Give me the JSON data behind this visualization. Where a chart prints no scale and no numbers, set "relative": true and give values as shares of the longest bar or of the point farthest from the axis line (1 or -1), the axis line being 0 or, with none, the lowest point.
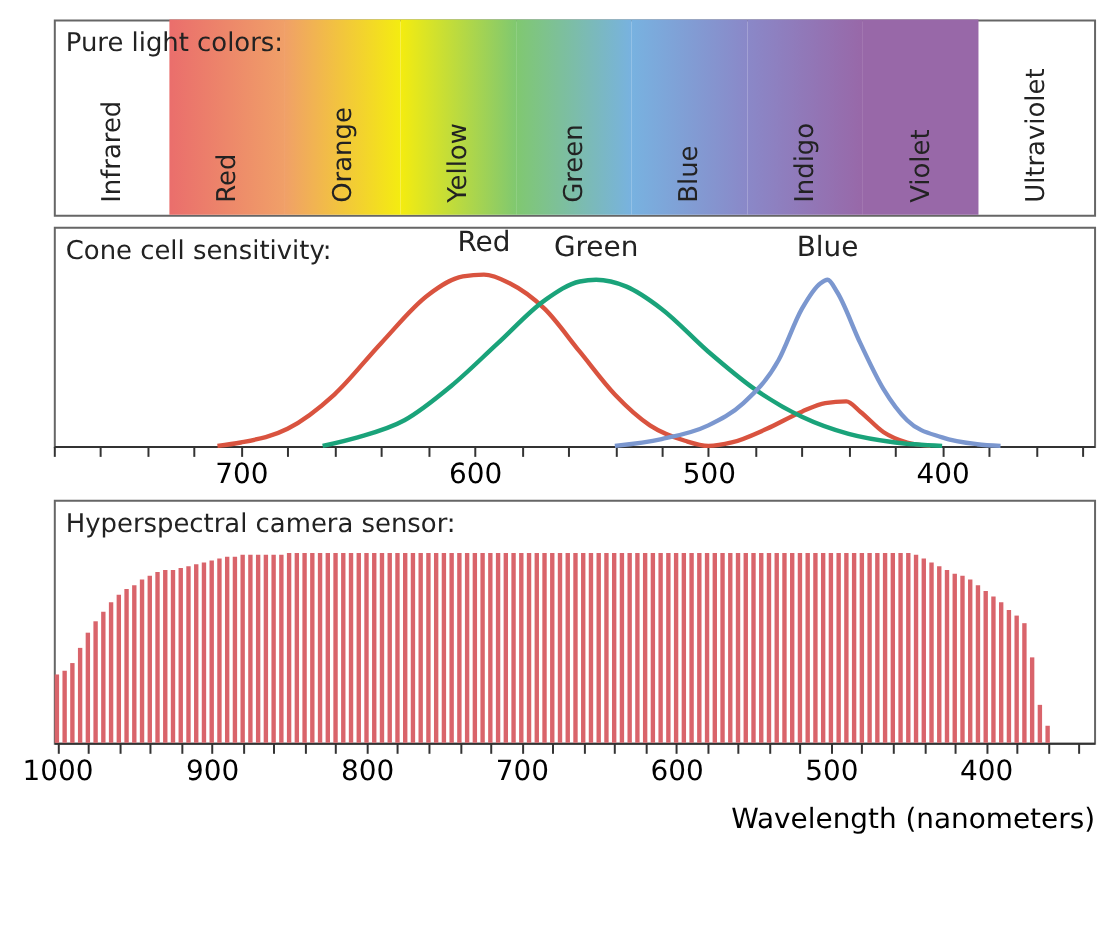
{
  "chart_data": [
    {
      "type": "other",
      "title": "Pure light colors:",
      "categories": [
        "Infrared",
        "Red",
        "Orange",
        "Yellow",
        "Green",
        "Blue",
        "Indigo",
        "Violet",
        "Ultraviolet"
      ],
      "colors": [
        null,
        "#ea6e6c",
        "#f0a068",
        "#f4ec10",
        "#80c870",
        "#78b2e0",
        "#8a88c8",
        "#9868a8",
        null
      ]
    },
    {
      "type": "line",
      "title": "Cone cell sensitivity:",
      "relative": true,
      "xlim": [
        780,
        335
      ],
      "tick_labels": "x",
      "marker": "none",
      "line_style": "solid",
      "xticks": [
        {
          "value": 780,
          "label": null
        },
        {
          "value": 760,
          "label": null
        },
        {
          "value": 740,
          "label": null
        },
        {
          "value": 720,
          "label": null
        },
        700,
        {
          "value": 680,
          "label": null
        },
        {
          "value": 660,
          "label": null
        },
        {
          "value": 640,
          "label": null
        },
        {
          "value": 620,
          "label": null
        },
        600,
        {
          "value": 580,
          "label": null
        },
        {
          "value": 560,
          "label": null
        },
        {
          "value": 540,
          "label": null
        },
        {
          "value": 520,
          "label": null
        },
        500,
        {
          "value": 480,
          "label": null
        },
        {
          "value": 460,
          "label": null
        },
        {
          "value": 440,
          "label": null
        },
        {
          "value": 420,
          "label": null
        },
        400,
        {
          "value": 380,
          "label": null
        },
        {
          "value": 360,
          "label": null
        },
        {
          "value": 340,
          "label": null
        }
      ],
      "series": [
        {
          "name": "Red",
          "color": "#d9533f",
          "x": [
            710,
            700,
            680,
            660,
            640,
            620,
            605,
            596,
            585,
            570,
            555,
            540,
            525,
            510,
            500,
            490,
            475,
            460,
            450,
            441,
            435,
            425,
            415,
            405
          ],
          "values": [
            0,
            0.02,
            0.1,
            0.3,
            0.6,
            0.88,
            0.99,
            1.0,
            0.95,
            0.8,
            0.55,
            0.3,
            0.12,
            0.03,
            0.0,
            0.02,
            0.1,
            0.2,
            0.25,
            0.26,
            0.2,
            0.08,
            0.02,
            0
          ]
        },
        {
          "name": "Green",
          "color": "#1aa37a",
          "x": [
            665,
            650,
            630,
            610,
            590,
            570,
            555,
            548,
            535,
            520,
            500,
            480,
            460,
            440,
            420,
            400
          ],
          "values": [
            0,
            0.05,
            0.15,
            0.35,
            0.6,
            0.85,
            0.96,
            0.97,
            0.93,
            0.8,
            0.55,
            0.33,
            0.17,
            0.07,
            0.02,
            0
          ]
        },
        {
          "name": "Blue",
          "color": "#7b97cf",
          "x": [
            540,
            520,
            500,
            485,
            470,
            460,
            452,
            449,
            445,
            435,
            425,
            415,
            400,
            385,
            375
          ],
          "values": [
            0,
            0.04,
            0.12,
            0.25,
            0.5,
            0.8,
            0.95,
            0.97,
            0.9,
            0.6,
            0.33,
            0.15,
            0.05,
            0.01,
            0
          ]
        }
      ]
    },
    {
      "type": "bar",
      "title": "Hyperspectral camera sensor:",
      "relative": true,
      "xlabel": "Wavelength (nanometers)",
      "xlim": [
        1002,
        330
      ],
      "tick_labels": "x",
      "color": "#d9646b",
      "xticks": [
        1000,
        {
          "value": 980,
          "label": null
        },
        {
          "value": 960,
          "label": null
        },
        {
          "value": 940,
          "label": null
        },
        {
          "value": 920,
          "label": null
        },
        900,
        {
          "value": 880,
          "label": null
        },
        {
          "value": 860,
          "label": null
        },
        {
          "value": 840,
          "label": null
        },
        {
          "value": 820,
          "label": null
        },
        800,
        {
          "value": 780,
          "label": null
        },
        {
          "value": 760,
          "label": null
        },
        {
          "value": 740,
          "label": null
        },
        {
          "value": 720,
          "label": null
        },
        700,
        {
          "value": 680,
          "label": null
        },
        {
          "value": 660,
          "label": null
        },
        {
          "value": 640,
          "label": null
        },
        {
          "value": 620,
          "label": null
        },
        600,
        {
          "value": 580,
          "label": null
        },
        {
          "value": 560,
          "label": null
        },
        {
          "value": 540,
          "label": null
        },
        {
          "value": 520,
          "label": null
        },
        500,
        {
          "value": 480,
          "label": null
        },
        {
          "value": 460,
          "label": null
        },
        {
          "value": 440,
          "label": null
        },
        {
          "value": 420,
          "label": null
        },
        400,
        {
          "value": 380,
          "label": null
        },
        {
          "value": 360,
          "label": null
        },
        {
          "value": 340,
          "label": null
        }
      ],
      "x": [
        1000,
        995,
        990,
        985,
        980,
        975,
        970,
        965,
        960,
        955,
        950,
        945,
        940,
        935,
        930,
        925,
        920,
        915,
        910,
        905,
        900,
        895,
        890,
        885,
        880,
        875,
        870,
        865,
        860,
        855,
        850,
        845,
        840,
        835,
        830,
        825,
        820,
        815,
        810,
        805,
        800,
        795,
        790,
        785,
        780,
        775,
        770,
        765,
        760,
        755,
        750,
        745,
        740,
        735,
        730,
        725,
        720,
        715,
        710,
        705,
        700,
        695,
        690,
        685,
        680,
        675,
        670,
        665,
        660,
        655,
        650,
        645,
        640,
        635,
        630,
        625,
        620,
        615,
        610,
        605,
        600,
        595,
        590,
        585,
        580,
        575,
        570,
        565,
        560,
        555,
        550,
        545,
        540,
        535,
        530,
        525,
        520,
        515,
        510,
        505,
        500,
        495,
        490,
        485,
        480,
        475,
        470,
        465,
        460,
        455,
        450,
        445,
        440,
        435,
        430,
        425,
        420,
        415,
        410,
        405,
        400,
        395,
        390,
        385,
        380,
        375,
        370,
        365,
        360
      ],
      "values": [
        0.36,
        0.38,
        0.42,
        0.5,
        0.58,
        0.64,
        0.69,
        0.74,
        0.78,
        0.81,
        0.83,
        0.86,
        0.88,
        0.9,
        0.91,
        0.91,
        0.92,
        0.93,
        0.94,
        0.95,
        0.96,
        0.97,
        0.98,
        0.98,
        0.99,
        0.99,
        0.99,
        0.99,
        0.99,
        0.99,
        1,
        1,
        1,
        1,
        1,
        1,
        1,
        1,
        1,
        1,
        1,
        1,
        1,
        1,
        1,
        1,
        1,
        1,
        1,
        1,
        1,
        1,
        1,
        1,
        1,
        1,
        1,
        1,
        1,
        1,
        1,
        1,
        1,
        1,
        1,
        1,
        1,
        1,
        1,
        1,
        1,
        1,
        1,
        1,
        1,
        1,
        1,
        1,
        1,
        1,
        1,
        1,
        1,
        1,
        1,
        1,
        1,
        1,
        1,
        1,
        1,
        1,
        1,
        1,
        1,
        1,
        1,
        1,
        1,
        1,
        1,
        1,
        1,
        1,
        1,
        1,
        1,
        1,
        1,
        1,
        1,
        0.99,
        0.97,
        0.95,
        0.93,
        0.91,
        0.89,
        0.88,
        0.86,
        0.83,
        0.8,
        0.77,
        0.74,
        0.7,
        0.67,
        0.63,
        0.45,
        0.2,
        0.09
      ]
    }
  ]
}
